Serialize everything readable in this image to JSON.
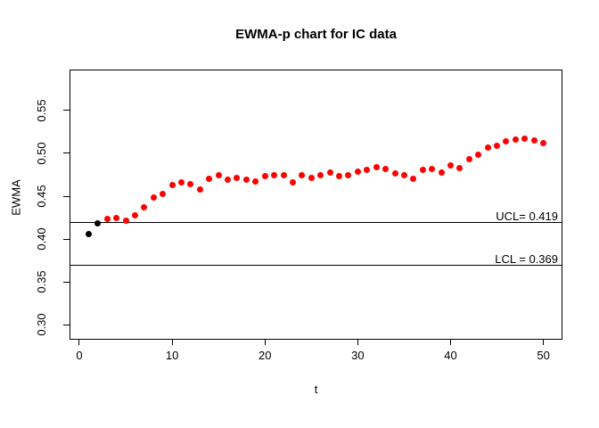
{
  "title": "EWMA-p chart for IC data",
  "chart_data": {
    "type": "scatter",
    "title": "EWMA-p chart for IC data",
    "xlabel": "t",
    "ylabel": "EWMA",
    "x": [
      1,
      2,
      3,
      4,
      5,
      6,
      7,
      8,
      9,
      10,
      11,
      12,
      13,
      14,
      15,
      16,
      17,
      18,
      19,
      20,
      21,
      22,
      23,
      24,
      25,
      26,
      27,
      28,
      29,
      30,
      31,
      32,
      33,
      34,
      35,
      36,
      37,
      38,
      39,
      40,
      41,
      42,
      43,
      44,
      45,
      46,
      47,
      48,
      49,
      50
    ],
    "values": [
      0.406,
      0.418,
      0.423,
      0.425,
      0.421,
      0.428,
      0.437,
      0.448,
      0.453,
      0.463,
      0.466,
      0.464,
      0.458,
      0.47,
      0.474,
      0.469,
      0.471,
      0.469,
      0.467,
      0.473,
      0.474,
      0.474,
      0.466,
      0.475,
      0.471,
      0.475,
      0.478,
      0.473,
      0.474,
      0.479,
      0.481,
      0.484,
      0.482,
      0.477,
      0.475,
      0.47,
      0.481,
      0.482,
      0.478,
      0.486,
      0.483,
      0.493,
      0.498,
      0.507,
      0.509,
      0.514,
      0.516,
      0.517,
      0.515,
      0.512
    ],
    "point_color": "#ff0000",
    "start_point_color": "#000000",
    "start_point_count": 2,
    "xlim": [
      -0.96,
      51.96
    ],
    "ylim": [
      0.2835,
      0.5968
    ],
    "x_ticks": [
      0,
      10,
      20,
      30,
      40,
      50
    ],
    "x_tick_labels": [
      "0",
      "10",
      "20",
      "30",
      "40",
      "50"
    ],
    "y_ticks": [
      0.3,
      0.35,
      0.4,
      0.45,
      0.5,
      0.55
    ],
    "y_tick_labels": [
      "0.30",
      "0.35",
      "0.40",
      "0.45",
      "0.50",
      "0.55"
    ],
    "grid": false,
    "legend": null,
    "reference_lines": [
      {
        "name": "ucl",
        "label": "UCL= 0.419",
        "value": 0.419
      },
      {
        "name": "lcl",
        "label": "LCL = 0.369",
        "value": 0.369
      }
    ]
  }
}
